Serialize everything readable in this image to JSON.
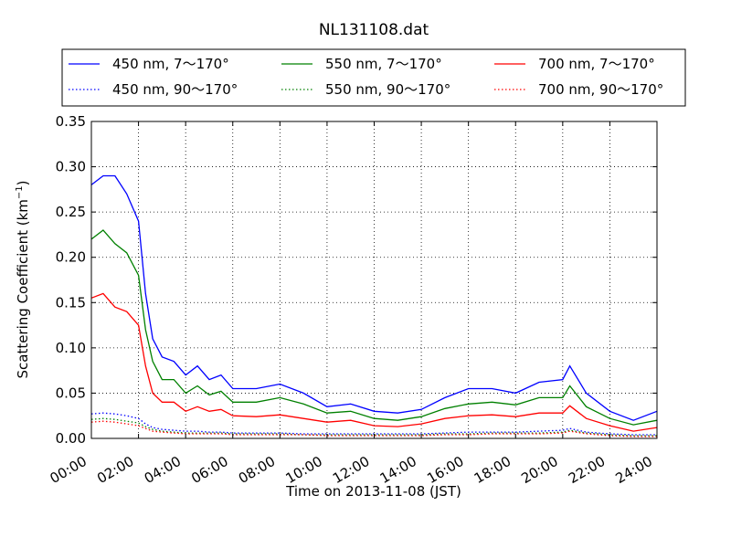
{
  "chart_data": {
    "type": "line",
    "title": "NL131108.dat",
    "xlabel": "Time on 2013-11-08 (JST)",
    "ylabel_main": "Scattering Coefficient (km",
    "ylabel_sup": "−1",
    "ylabel_end": ")",
    "xlim": [
      0,
      24
    ],
    "ylim": [
      0,
      0.35
    ],
    "grid": true,
    "legend_position": "top",
    "x_ticks": [
      0,
      2,
      4,
      6,
      8,
      10,
      12,
      14,
      16,
      18,
      20,
      22,
      24
    ],
    "x_tick_labels": [
      "00:00",
      "02:00",
      "04:00",
      "06:00",
      "08:00",
      "10:00",
      "12:00",
      "14:00",
      "16:00",
      "18:00",
      "20:00",
      "22:00",
      "24:00"
    ],
    "y_ticks": [
      0,
      0.05,
      0.1,
      0.15,
      0.2,
      0.25,
      0.3,
      0.35
    ],
    "y_tick_labels": [
      "0.00",
      "0.05",
      "0.10",
      "0.15",
      "0.20",
      "0.25",
      "0.30",
      "0.35"
    ],
    "x": [
      0,
      0.5,
      1,
      1.5,
      2,
      2.3,
      2.6,
      3,
      3.5,
      4,
      4.5,
      5,
      5.5,
      6,
      7,
      8,
      9,
      10,
      11,
      12,
      13,
      14,
      15,
      16,
      17,
      18,
      19,
      20,
      20.3,
      21,
      22,
      23,
      24
    ],
    "series": [
      {
        "name": "450 nm, 7～170°",
        "color": "#0000ff",
        "style": "solid",
        "values": [
          0.28,
          0.29,
          0.29,
          0.27,
          0.24,
          0.16,
          0.11,
          0.09,
          0.085,
          0.07,
          0.08,
          0.065,
          0.07,
          0.055,
          0.055,
          0.06,
          0.05,
          0.035,
          0.038,
          0.03,
          0.028,
          0.032,
          0.045,
          0.055,
          0.055,
          0.05,
          0.062,
          0.065,
          0.08,
          0.05,
          0.03,
          0.02,
          0.03
        ]
      },
      {
        "name": "450 nm, 90～170°",
        "color": "#0000ff",
        "style": "dotted",
        "values": [
          0.027,
          0.028,
          0.027,
          0.025,
          0.022,
          0.016,
          0.012,
          0.01,
          0.009,
          0.008,
          0.008,
          0.007,
          0.007,
          0.006,
          0.006,
          0.006,
          0.005,
          0.005,
          0.005,
          0.005,
          0.005,
          0.005,
          0.006,
          0.007,
          0.007,
          0.007,
          0.008,
          0.009,
          0.011,
          0.007,
          0.005,
          0.004,
          0.004
        ]
      },
      {
        "name": "550 nm, 7～170°",
        "color": "#008000",
        "style": "solid",
        "values": [
          0.22,
          0.23,
          0.215,
          0.205,
          0.18,
          0.12,
          0.085,
          0.065,
          0.065,
          0.05,
          0.058,
          0.048,
          0.052,
          0.04,
          0.04,
          0.045,
          0.038,
          0.028,
          0.03,
          0.022,
          0.02,
          0.024,
          0.033,
          0.038,
          0.04,
          0.037,
          0.045,
          0.045,
          0.058,
          0.035,
          0.022,
          0.015,
          0.02
        ]
      },
      {
        "name": "550 nm, 90～170°",
        "color": "#008000",
        "style": "dotted",
        "values": [
          0.021,
          0.022,
          0.021,
          0.019,
          0.017,
          0.013,
          0.01,
          0.008,
          0.007,
          0.006,
          0.006,
          0.006,
          0.006,
          0.005,
          0.005,
          0.005,
          0.004,
          0.004,
          0.004,
          0.004,
          0.004,
          0.004,
          0.005,
          0.005,
          0.006,
          0.006,
          0.006,
          0.007,
          0.009,
          0.006,
          0.004,
          0.003,
          0.003
        ]
      },
      {
        "name": "700 nm, 7～170°",
        "color": "#ff0000",
        "style": "solid",
        "values": [
          0.155,
          0.16,
          0.145,
          0.14,
          0.125,
          0.08,
          0.05,
          0.04,
          0.04,
          0.03,
          0.035,
          0.03,
          0.032,
          0.025,
          0.024,
          0.026,
          0.022,
          0.018,
          0.02,
          0.014,
          0.013,
          0.016,
          0.022,
          0.025,
          0.026,
          0.024,
          0.028,
          0.028,
          0.036,
          0.022,
          0.014,
          0.008,
          0.012
        ]
      },
      {
        "name": "700 nm, 90～170°",
        "color": "#ff0000",
        "style": "dotted",
        "values": [
          0.018,
          0.019,
          0.018,
          0.016,
          0.014,
          0.011,
          0.008,
          0.007,
          0.006,
          0.005,
          0.005,
          0.005,
          0.005,
          0.004,
          0.004,
          0.004,
          0.004,
          0.003,
          0.003,
          0.003,
          0.003,
          0.003,
          0.004,
          0.004,
          0.005,
          0.005,
          0.005,
          0.006,
          0.008,
          0.005,
          0.003,
          0.002,
          0.002
        ]
      }
    ]
  }
}
